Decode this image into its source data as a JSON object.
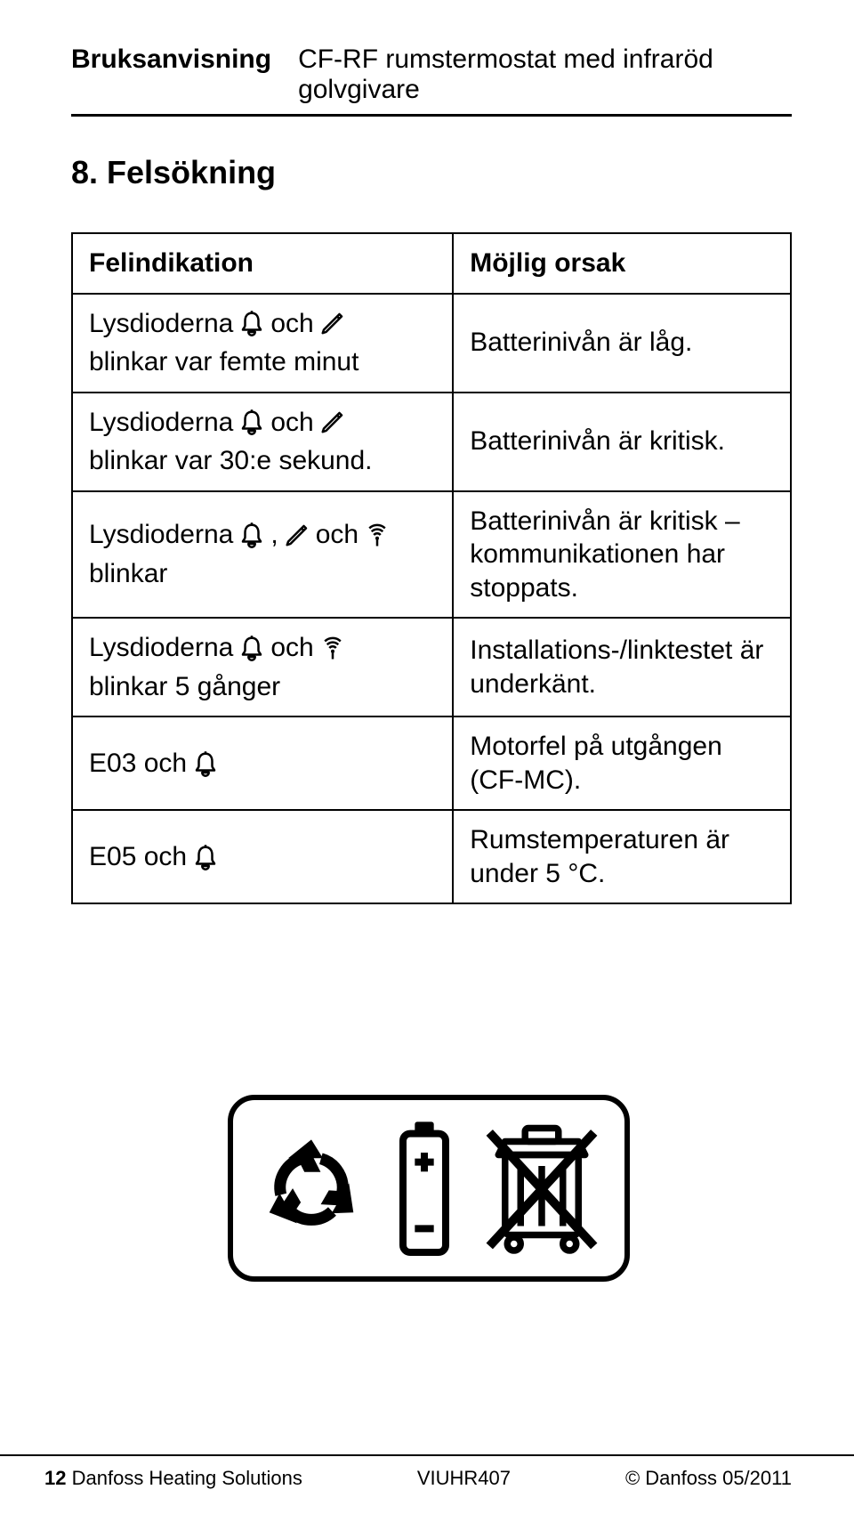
{
  "header": {
    "left": "Bruksanvisning",
    "right": "CF-RF rumstermostat med infraröd golvgivare"
  },
  "section": {
    "title": "8. Felsökning"
  },
  "table": {
    "head": {
      "c1": "Felindikation",
      "c2": "Möjlig orsak"
    },
    "rows": [
      {
        "c1_parts": [
          "Lysdioderna",
          "bell",
          "och",
          "pencil",
          "blinkar var femte minut"
        ],
        "c2": "Batterinivån är låg."
      },
      {
        "c1_parts": [
          "Lysdioderna",
          "bell",
          "och",
          "pencil",
          "blinkar var 30:e sekund."
        ],
        "c2": "Batterinivån är kritisk."
      },
      {
        "c1_parts": [
          "Lysdioderna",
          "bell",
          ",",
          "pencil",
          "och",
          "antenna",
          "blinkar"
        ],
        "c2": "Batterinivån är kritisk – kommunikationen har stoppats."
      },
      {
        "c1_parts": [
          "Lysdioderna",
          "bell",
          "och",
          "antenna",
          "blinkar 5 gånger"
        ],
        "c2": "Installations-/linktestet är underkänt."
      },
      {
        "c1_parts": [
          "E03 och",
          "bell"
        ],
        "c2": "Motorfel på utgången (CF-MC)."
      },
      {
        "c1_parts": [
          "E05 och",
          "bell"
        ],
        "c2": "Rumstemperaturen är under 5 °C."
      }
    ]
  },
  "icons": {
    "bell": "bell",
    "pencil": "pencil",
    "antenna": "antenna"
  },
  "footer": {
    "page_number": "12",
    "left_text": "Danfoss Heating Solutions",
    "mid": "VIUHR407",
    "right": "© Danfoss   05/2011"
  },
  "colors": {
    "text": "#000000",
    "bg": "#ffffff",
    "border": "#000000"
  }
}
